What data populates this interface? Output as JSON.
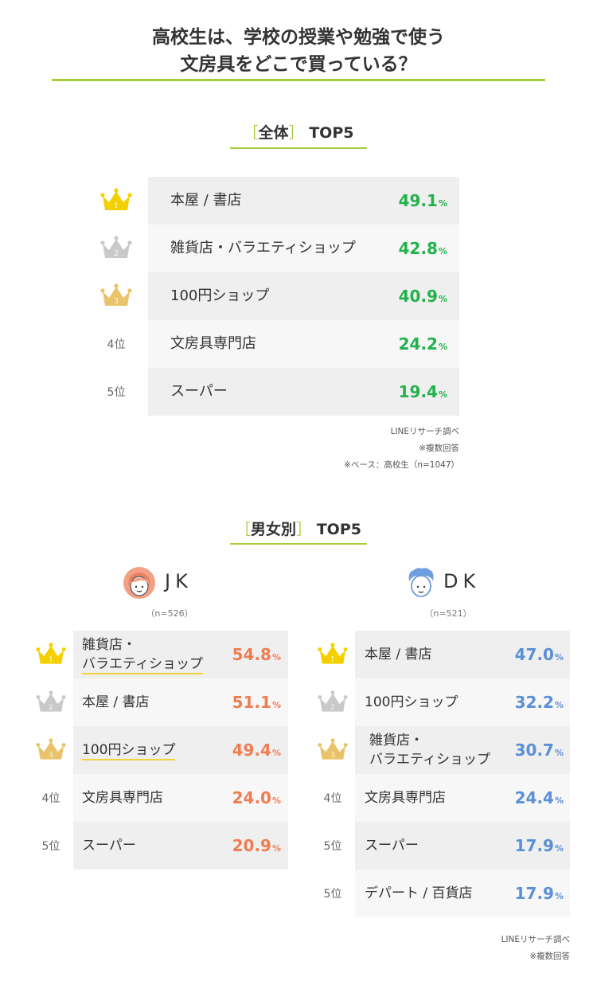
{
  "title": {
    "line1": "高校生は、学校の授業や勉強で使う",
    "line2": "文房具をどこで買っている？"
  },
  "overall": {
    "heading_open": "［",
    "heading_label": "全体",
    "heading_close": "］",
    "heading_suffix": "TOP5",
    "rows": [
      {
        "rank": "1",
        "rank_label": "",
        "label": "本屋 / 書店",
        "value": 49.1,
        "display": "49.1",
        "unit": "%"
      },
      {
        "rank": "2",
        "rank_label": "",
        "label": "雑貨店・バラエティショップ",
        "value": 42.8,
        "display": "42.8",
        "unit": "%"
      },
      {
        "rank": "3",
        "rank_label": "",
        "label": "100円ショップ",
        "value": 40.9,
        "display": "40.9",
        "unit": "%"
      },
      {
        "rank": "4",
        "rank_label": "4位",
        "label": "文房具専門店",
        "value": 24.2,
        "display": "24.2",
        "unit": "%"
      },
      {
        "rank": "5",
        "rank_label": "5位",
        "label": "スーパー",
        "value": 19.4,
        "display": "19.4",
        "unit": "%"
      }
    ],
    "notes": [
      "LINEリサーチ調べ",
      "※複数回答",
      "※ベース：高校生（n=1047）"
    ]
  },
  "gender": {
    "heading_open": "［",
    "heading_label": "男女別",
    "heading_close": "］",
    "heading_suffix": "TOP5",
    "jk": {
      "name": "JK",
      "n": "（n=526）",
      "rows": [
        {
          "rank": "1",
          "rank_label": "",
          "label_line1": "雑貨店・",
          "label_line2": "バラエティショップ",
          "value": 54.8,
          "display": "54.8",
          "unit": "%"
        },
        {
          "rank": "2",
          "rank_label": "",
          "label_line1": "本屋 / 書店",
          "label_line2": "",
          "value": 51.1,
          "display": "51.1",
          "unit": "%"
        },
        {
          "rank": "3",
          "rank_label": "",
          "label_line1": "100円ショップ",
          "label_line2": "",
          "value": 49.4,
          "display": "49.4",
          "unit": "%"
        },
        {
          "rank": "4",
          "rank_label": "4位",
          "label_line1": "文房具専門店",
          "label_line2": "",
          "value": 24.0,
          "display": "24.0",
          "unit": "%"
        },
        {
          "rank": "5",
          "rank_label": "5位",
          "label_line1": "スーパー",
          "label_line2": "",
          "value": 20.9,
          "display": "20.9",
          "unit": "%"
        }
      ]
    },
    "dk": {
      "name": "DK",
      "n": "（n=521）",
      "rows": [
        {
          "rank": "1",
          "rank_label": "",
          "label_line1": "本屋 / 書店",
          "label_line2": "",
          "value": 47.0,
          "display": "47.0",
          "unit": "%"
        },
        {
          "rank": "2",
          "rank_label": "",
          "label_line1": "100円ショップ",
          "label_line2": "",
          "value": 32.2,
          "display": "32.2",
          "unit": "%"
        },
        {
          "rank": "3",
          "rank_label": "",
          "label_line1": "雑貨店・",
          "label_line2": "バラエティショップ",
          "value": 30.7,
          "display": "30.7",
          "unit": "%"
        },
        {
          "rank": "4",
          "rank_label": "4位",
          "label_line1": "文房具専門店",
          "label_line2": "",
          "value": 24.4,
          "display": "24.4",
          "unit": "%"
        },
        {
          "rank": "5",
          "rank_label": "5位",
          "label_line1": "スーパー",
          "label_line2": "",
          "value": 17.9,
          "display": "17.9",
          "unit": "%"
        },
        {
          "rank": "5",
          "rank_label": "5位",
          "label_line1": "デパート / 百貨店",
          "label_line2": "",
          "value": 17.9,
          "display": "17.9",
          "unit": "%"
        }
      ]
    },
    "notes": [
      "LINEリサーチ調べ",
      "※複数回答"
    ]
  },
  "colors": {
    "accent_rule": "#a8cd3c",
    "overall_value": "#22b24c",
    "jk_value": "#f07c52",
    "dk_value": "#5b8fd6",
    "gold": "#f5d000",
    "silver": "#c9c9c9",
    "bronze": "#e8c36a",
    "row_dark": "#efefef",
    "row_light": "#f7f7f7",
    "highlight": "#f5d23a"
  },
  "chart_data": [
    {
      "type": "table",
      "title": "全体 TOP5",
      "categories": [
        "本屋 / 書店",
        "雑貨店・バラエティショップ",
        "100円ショップ",
        "文房具専門店",
        "スーパー"
      ],
      "values": [
        49.1,
        42.8,
        40.9,
        24.2,
        19.4
      ],
      "unit": "%"
    },
    {
      "type": "table",
      "title": "男女別 TOP5 - JK",
      "categories": [
        "雑貨店・バラエティショップ",
        "本屋 / 書店",
        "100円ショップ",
        "文房具専門店",
        "スーパー"
      ],
      "values": [
        54.8,
        51.1,
        49.4,
        24.0,
        20.9
      ],
      "unit": "%"
    },
    {
      "type": "table",
      "title": "男女別 TOP5 - DK",
      "categories": [
        "本屋 / 書店",
        "100円ショップ",
        "雑貨店・バラエティショップ",
        "文房具専門店",
        "スーパー",
        "デパート / 百貨店"
      ],
      "values": [
        47.0,
        32.2,
        30.7,
        24.4,
        17.9,
        17.9
      ],
      "unit": "%"
    }
  ]
}
